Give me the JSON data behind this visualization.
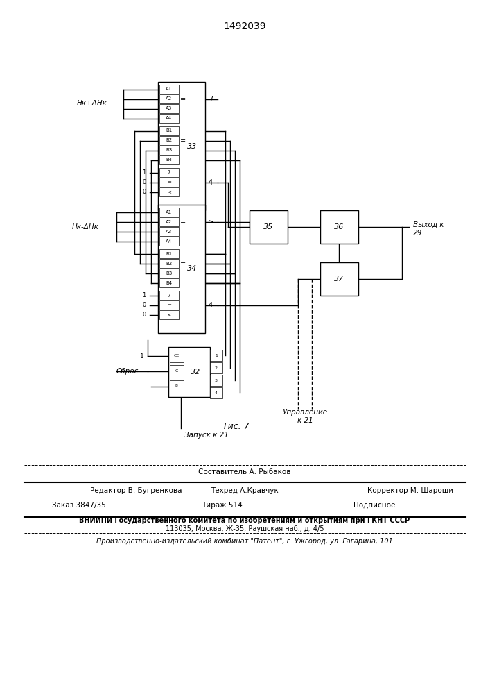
{
  "title": "1492039",
  "fig_label": "Τис. 7",
  "bg_color": "#ffffff",
  "label_hk_plus": "Hк+ΔHк",
  "label_hk_minus": "Hк-ΔHк",
  "label_sbros": "Сброс",
  "label_zapusk": "Запуск к 21",
  "label_upravlenie": "Управление\nк 21",
  "label_vyhod": "Выход к\n29"
}
